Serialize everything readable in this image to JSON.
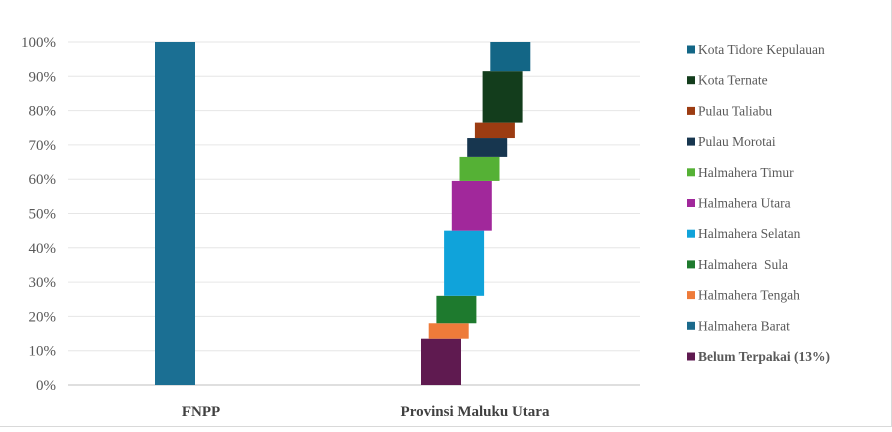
{
  "chart_data": {
    "type": "bar",
    "subtype": "waterfall",
    "categories": [
      "FNPP",
      "Provinsi Maluku Utara"
    ],
    "y_ticks": [
      "0%",
      "10%",
      "20%",
      "30%",
      "40%",
      "50%",
      "60%",
      "70%",
      "80%",
      "90%",
      "100%"
    ],
    "ylim": [
      0,
      100
    ],
    "grid": true,
    "legend_position": "right",
    "fnpp": {
      "category": "FNPP",
      "value": 100,
      "color": "#1B6F93"
    },
    "segments": [
      {
        "name": "Belum Terpakai (13%)",
        "start": 0,
        "end": 13.5,
        "color": "#5F1A50",
        "label_color": "#E8121B",
        "label_bold": true
      },
      {
        "name": "Halmahera Tengah",
        "start": 13.5,
        "end": 18,
        "color": "#EE7B3A"
      },
      {
        "name": "Halmahera  Sula",
        "start": 18,
        "end": 26,
        "color": "#1E7A2E"
      },
      {
        "name": "Halmahera Selatan",
        "start": 26,
        "end": 45,
        "color": "#10A3DA"
      },
      {
        "name": "Halmahera Utara",
        "start": 45,
        "end": 59.5,
        "color": "#A1289B"
      },
      {
        "name": "Halmahera Timur",
        "start": 59.5,
        "end": 66.5,
        "color": "#55B135"
      },
      {
        "name": "Pulau Morotai",
        "start": 66.5,
        "end": 72,
        "color": "#17364F"
      },
      {
        "name": "Pulau Taliabu",
        "start": 72,
        "end": 76.5,
        "color": "#9C3C12"
      },
      {
        "name": "Kota Ternate",
        "start": 76.5,
        "end": 91.5,
        "color": "#133D1C"
      },
      {
        "name": "Kota Tidore Kepulauan",
        "start": 91.5,
        "end": 100,
        "color": "#136686"
      }
    ],
    "legend_order": [
      "Kota Tidore Kepulauan",
      "Kota Ternate",
      "Pulau Taliabu",
      "Pulau Morotai",
      "Halmahera Timur",
      "Halmahera Utara",
      "Halmahera Selatan",
      "Halmahera  Sula",
      "Halmahera Tengah",
      "Halmahera Barat",
      "Belum Terpakai (13%)"
    ],
    "legend_colors": {
      "Kota Tidore Kepulauan": "#136686",
      "Kota Ternate": "#133D1C",
      "Pulau Taliabu": "#9C3C12",
      "Pulau Morotai": "#17364F",
      "Halmahera Timur": "#55B135",
      "Halmahera Utara": "#A1289B",
      "Halmahera Selatan": "#10A3DA",
      "Halmahera  Sula": "#1E7A2E",
      "Halmahera Tengah": "#EE7B3A",
      "Halmahera Barat": "#1B6A8C",
      "Belum Terpakai (13%)": "#5F1A50"
    },
    "grid_color": "#e6e6e6"
  }
}
